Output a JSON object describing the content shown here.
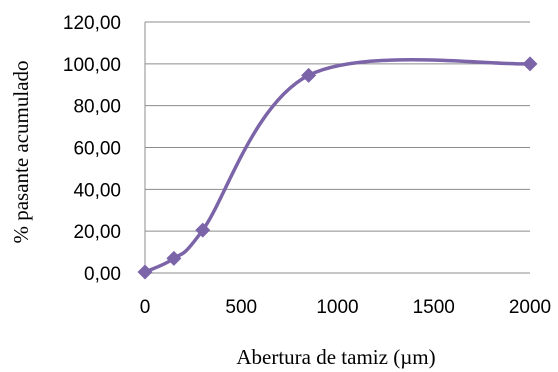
{
  "chart_data": {
    "type": "scatter",
    "title": "",
    "xlabel": "Abertura de tamiz (µm)",
    "ylabel": "% pasante acumulado",
    "xlim": [
      0,
      2000
    ],
    "ylim": [
      0,
      120
    ],
    "x_ticks": [
      0,
      500,
      1000,
      1500,
      2000
    ],
    "x_tick_labels": [
      "0",
      "500",
      "1000",
      "1500",
      "2000"
    ],
    "y_ticks": [
      0,
      20,
      40,
      60,
      80,
      100,
      120
    ],
    "y_tick_labels": [
      "0,00",
      "20,00",
      "40,00",
      "60,00",
      "80,00",
      "100,00",
      "120,00"
    ],
    "grid": "horizontal",
    "legend": "none",
    "smooth_line": true,
    "series": [
      {
        "color": "#7b64a8",
        "marker": "diamond",
        "x": [
          0,
          150,
          300,
          850,
          2000
        ],
        "y": [
          0.5,
          7,
          20.5,
          94.5,
          100
        ]
      }
    ]
  }
}
